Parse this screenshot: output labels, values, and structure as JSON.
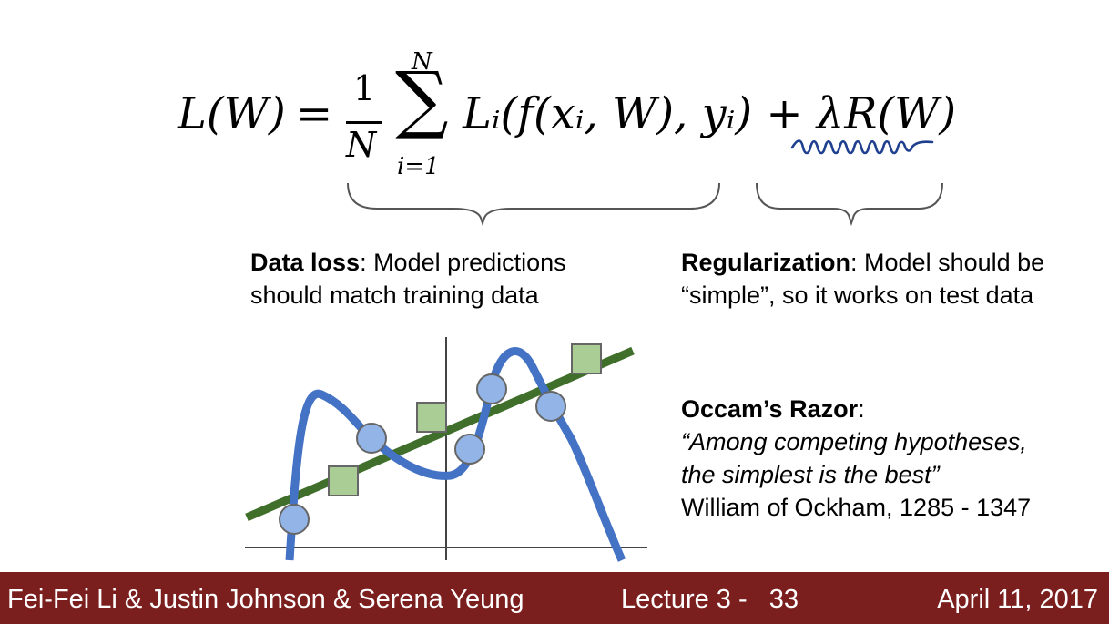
{
  "formula": {
    "lhs": "L(W)",
    "equals": "=",
    "frac_num": "1",
    "frac_den": "N",
    "sum_upper": "N",
    "sum_symbol": "∑",
    "sum_lower": "i=1",
    "body": "Lᵢ(f(xᵢ, W), yᵢ) + λR(W)"
  },
  "data_loss": {
    "title": "Data loss",
    "text": ": Model predictions should match training data"
  },
  "regularization": {
    "title": "Regularization",
    "text": ": Model should be “simple”, so it works on test data"
  },
  "occam": {
    "title": "Occam’s Razor",
    "colon": ":",
    "quote_line1": "“Among competing hypotheses,",
    "quote_line2": "the simplest is the best”",
    "attribution": "William of Ockham, 1285 - 1347"
  },
  "plot": {
    "line_color": "#3f6f2a",
    "curve_color": "#4472c4",
    "circle_fill": "#92b4e6",
    "square_fill": "#a9cd94",
    "annotation_color": "#1f3f8f"
  },
  "footer": {
    "authors": "Fei-Fei Li & Justin Johnson & Serena Yeung",
    "lecture": "Lecture 3 -   33",
    "date": "April 11, 2017",
    "background": "#7b1f1e"
  }
}
